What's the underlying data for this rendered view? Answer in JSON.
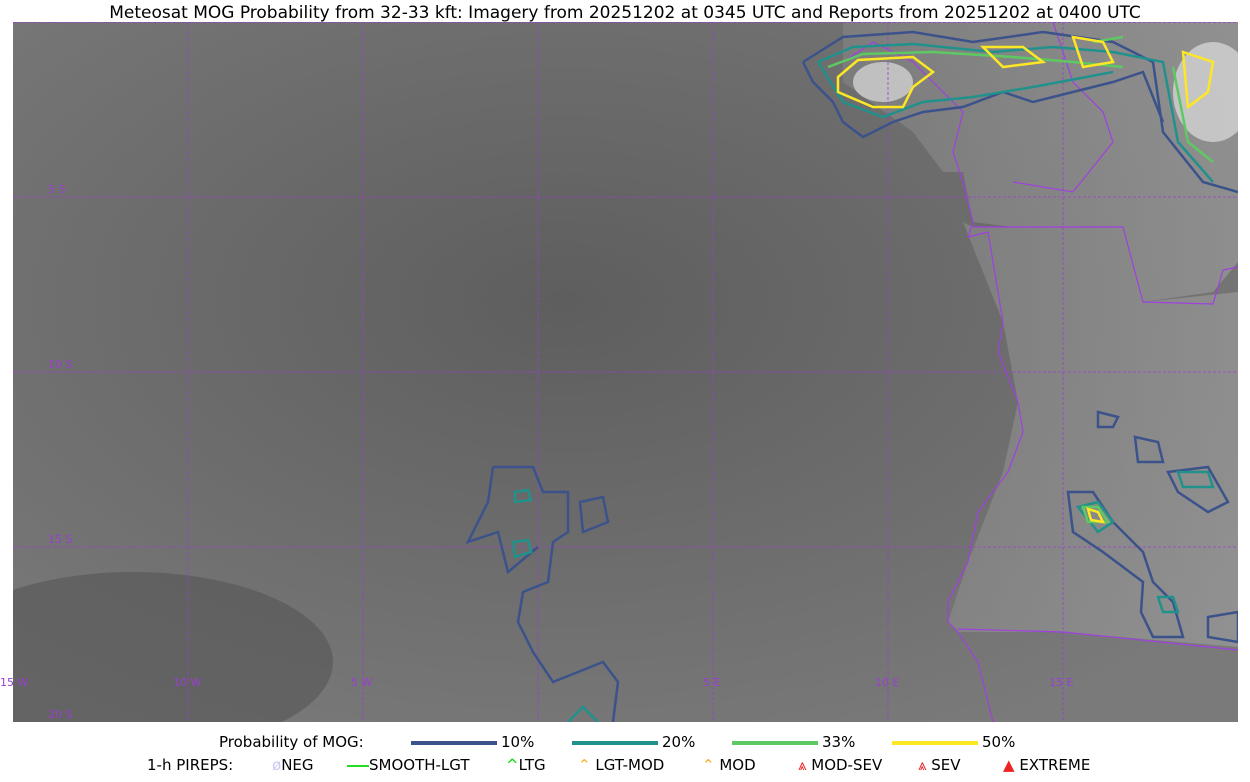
{
  "title": "Meteosat MOG Probability from 32-33 kft: Imagery from 20251202 at 0345 UTC and Reports from 20251202 at 0400 UTC",
  "map": {
    "lon_labels": [
      "15 W",
      "10 W",
      "5 W",
      "5 E",
      "10 E",
      "15 E"
    ],
    "lat_labels": [
      "5 S",
      "10 S",
      "15 S",
      "20 S"
    ],
    "grid_color": "#9a3fd0",
    "coast_color": "#a040e0"
  },
  "legend": {
    "probability_label": "Probability of MOG:",
    "probability_levels": [
      {
        "label": "10%",
        "color": "#3b528b"
      },
      {
        "label": "20%",
        "color": "#21918c"
      },
      {
        "label": "33%",
        "color": "#5ec962"
      },
      {
        "label": "50%",
        "color": "#fde725"
      }
    ],
    "pireps_label": "1-h PIREPS:",
    "pireps": [
      {
        "label": "NEG",
        "color": "#c8c8f0",
        "icon": "neg-icon"
      },
      {
        "label": "SMOOTH-LGT",
        "color": "#22dd22",
        "icon": "line-icon"
      },
      {
        "label": "LTG",
        "color": "#00dd00",
        "icon": "caret-icon"
      },
      {
        "label": "LGT-MOD",
        "color": "#f5b020",
        "icon": "caret-bar-icon"
      },
      {
        "label": "MOD",
        "color": "#f5b020",
        "icon": "caret-icon"
      },
      {
        "label": "MOD-SEV",
        "color": "#ee2222",
        "icon": "double-caret-icon"
      },
      {
        "label": "SEV",
        "color": "#ee2222",
        "icon": "double-caret-icon"
      },
      {
        "label": "EXTREME",
        "color": "#ee2222",
        "icon": "filled-triangle-icon"
      }
    ]
  }
}
